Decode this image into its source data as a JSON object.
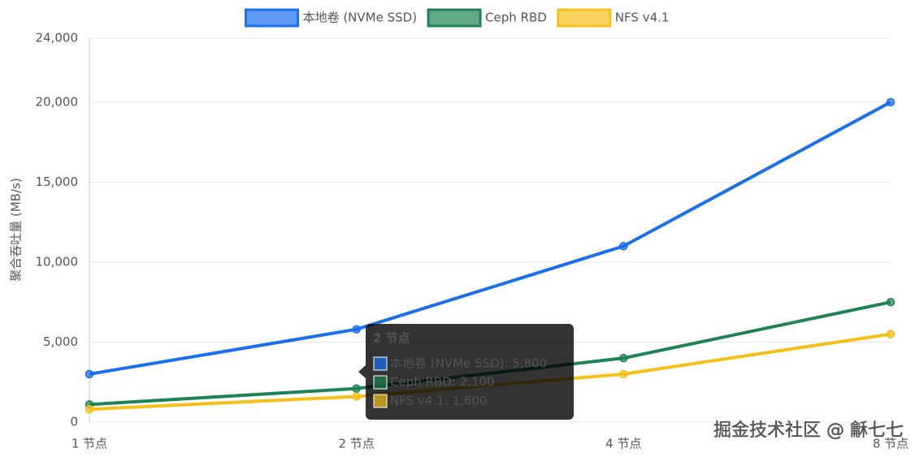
{
  "chart_data": {
    "type": "line",
    "y_label": "聚合吞吐量 (MB/s)",
    "categories": [
      "1 节点",
      "2 节点",
      "4 节点",
      "8 节点"
    ],
    "series": [
      {
        "name": "本地卷 (NVMe SSD)",
        "color": "#1a6ef0",
        "values": [
          3000,
          5800,
          11000,
          20000
        ]
      },
      {
        "name": "Ceph RBD",
        "color": "#1e8354",
        "values": [
          1100,
          2100,
          4000,
          7500
        ]
      },
      {
        "name": "NFS v4.1",
        "color": "#f5c018",
        "values": [
          800,
          1600,
          3000,
          5500
        ]
      }
    ],
    "ylim": [
      0,
      24000
    ],
    "yticks": [
      0,
      {
        "value": 5000,
        "label": "5,000"
      },
      {
        "value": 10000,
        "label": "10,000"
      },
      {
        "value": 15000,
        "label": "15,000"
      },
      {
        "value": 20000,
        "label": "20,000"
      },
      {
        "value": 24000,
        "label": "24,000"
      }
    ],
    "grid": true,
    "legend": "top",
    "tooltip": {
      "title": "2 节点",
      "items": [
        "本地卷 (NVMe SSD): 5,800",
        "Ceph RBD: 2,100",
        "NFS v4.1: 1,600"
      ]
    }
  },
  "watermark": "掘金技术社区 @ 龢七七"
}
